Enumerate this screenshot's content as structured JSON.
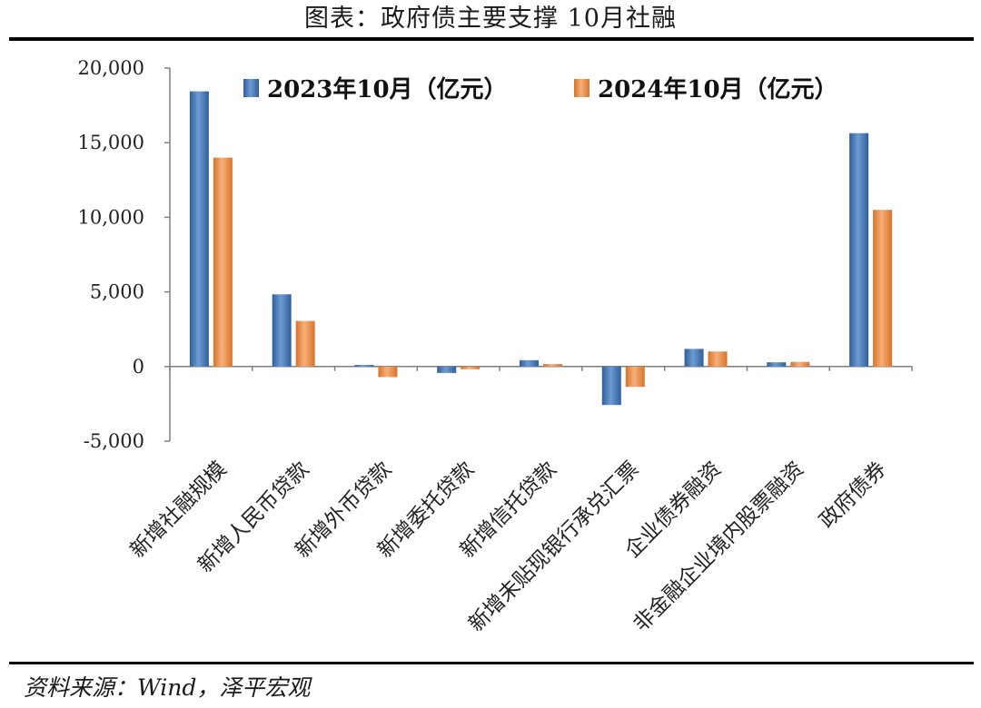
{
  "title": "图表：政府债主要支撑 10月社融",
  "source": "资料来源：Wind，泽平宏观",
  "colors": {
    "series1": "#4a7ebb",
    "series2": "#f0914b",
    "axis": "#7f7f7f"
  },
  "chart_data": {
    "type": "bar",
    "title": "",
    "xlabel": "",
    "ylabel": "",
    "ylim": [
      -5000,
      20000
    ],
    "y_ticks": [
      "20,000",
      "15,000",
      "10,000",
      "5,000",
      "0",
      "-5,000"
    ],
    "y_tick_values": [
      20000,
      15000,
      10000,
      5000,
      0,
      -5000
    ],
    "legend_position": "top",
    "grid": false,
    "categories": [
      "新增社融规模",
      "新增人民币贷款",
      "新增外币贷款",
      "新增委托贷款",
      "新增信托贷款",
      "新增未贴现银行承兑汇票",
      "企业债券融资",
      "非金融企业境内股票融资",
      "政府债券"
    ],
    "series": [
      {
        "name": "2023年10月（亿元）",
        "values": [
          18441,
          4837,
          105,
          -431,
          424,
          -2578,
          1183,
          283,
          15638
        ]
      },
      {
        "name": "2024年10月（亿元）",
        "values": [
          14000,
          3052,
          -708,
          -180,
          163,
          -1364,
          1007,
          306,
          10498
        ]
      }
    ]
  }
}
